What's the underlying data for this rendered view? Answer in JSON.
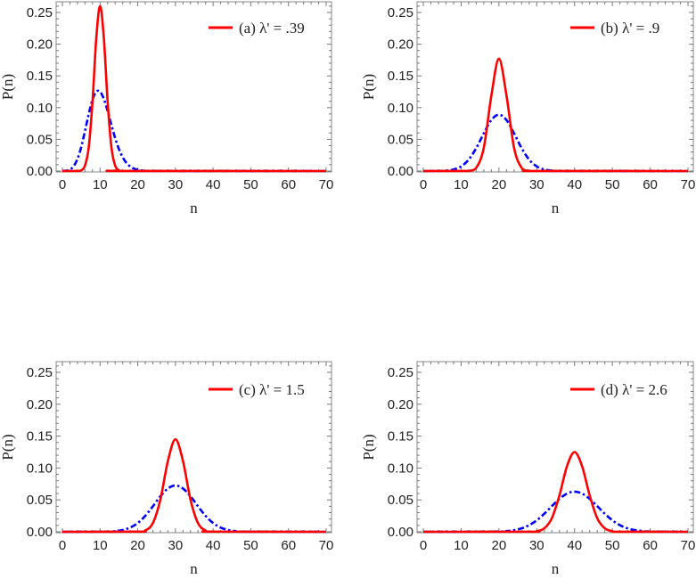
{
  "chart_data": [
    {
      "type": "line",
      "xlabel": "n",
      "ylabel": "P(n)",
      "xlim": [
        0,
        70
      ],
      "ylim": [
        0,
        0.265
      ],
      "xticks": [
        "0",
        "10",
        "20",
        "30",
        "40",
        "50",
        "60",
        "70"
      ],
      "yticks": [
        "0.00",
        "0.05",
        "0.10",
        "0.15",
        "0.20",
        "0.25"
      ],
      "grid": false,
      "legend_placement": "top-right",
      "series": [
        {
          "name": "(a) λ' = .39",
          "color": "#ff0000",
          "style": "solid",
          "x": [
            0,
            4,
            5,
            6,
            7,
            8,
            9,
            10,
            11,
            12,
            13,
            14,
            15,
            16,
            70
          ],
          "y": [
            0,
            0.0001,
            0.0012,
            0.0086,
            0.038,
            0.11,
            0.21,
            0.26,
            0.21,
            0.11,
            0.038,
            0.0086,
            0.0012,
            0.0001,
            0
          ]
        },
        {
          "color": "#0000ff",
          "style": "dash-dot",
          "x": [
            0,
            1,
            2,
            3,
            4,
            5,
            6,
            7,
            8,
            9,
            10,
            11,
            12,
            13,
            14,
            15,
            16,
            17,
            18,
            19,
            20,
            21,
            22,
            23,
            70
          ],
          "y": [
            5e-05,
            0.0005,
            0.0023,
            0.0076,
            0.0189,
            0.0378,
            0.0631,
            0.0901,
            0.1126,
            0.1251,
            0.1251,
            0.1137,
            0.0948,
            0.0729,
            0.0521,
            0.0347,
            0.0217,
            0.0128,
            0.0071,
            0.0037,
            0.0019,
            0.0009,
            0.0004,
            0.0002,
            0
          ]
        }
      ]
    },
    {
      "type": "line",
      "xlabel": "n",
      "ylabel": "P(n)",
      "xlim": [
        0,
        70
      ],
      "ylim": [
        0,
        0.265
      ],
      "xticks": [
        "0",
        "10",
        "20",
        "30",
        "40",
        "50",
        "60",
        "70"
      ],
      "yticks": [
        "0.00",
        "0.05",
        "0.10",
        "0.15",
        "0.20",
        "0.25"
      ],
      "grid": false,
      "legend_placement": "top-right",
      "series": [
        {
          "name": "(b) λ' = .9",
          "color": "#ff0000",
          "style": "solid",
          "x": [
            0,
            10,
            12,
            14,
            16,
            18,
            20,
            22,
            24,
            26,
            28,
            30,
            70
          ],
          "y": [
            0,
            0.0001,
            0.0003,
            0.0051,
            0.0366,
            0.119,
            0.177,
            0.119,
            0.0366,
            0.0051,
            0.0003,
            0.0001,
            0
          ]
        },
        {
          "color": "#0000ff",
          "style": "dash-dot",
          "x": [
            0,
            4,
            6,
            8,
            10,
            12,
            14,
            16,
            18,
            20,
            22,
            24,
            26,
            28,
            30,
            32,
            34,
            36,
            70
          ],
          "y": [
            0,
            0.0001,
            0.0007,
            0.0024,
            0.0073,
            0.0179,
            0.0361,
            0.0595,
            0.0804,
            0.0888,
            0.0804,
            0.0595,
            0.0361,
            0.0179,
            0.0073,
            0.0024,
            0.0007,
            0.0001,
            0
          ]
        }
      ]
    },
    {
      "type": "line",
      "xlabel": "n",
      "ylabel": "P(n)",
      "xlim": [
        0,
        70
      ],
      "ylim": [
        0,
        0.265
      ],
      "xticks": [
        "0",
        "10",
        "20",
        "30",
        "40",
        "50",
        "60",
        "70"
      ],
      "yticks": [
        "0.00",
        "0.05",
        "0.10",
        "0.15",
        "0.20",
        "0.25"
      ],
      "grid": false,
      "legend_placement": "top-right",
      "series": [
        {
          "name": "(c) λ' = 1.5",
          "color": "#ff0000",
          "style": "solid",
          "x": [
            0,
            20,
            22,
            24,
            26,
            28,
            30,
            32,
            34,
            36,
            38,
            40,
            70
          ],
          "y": [
            0,
            0.0002,
            0.0021,
            0.0135,
            0.0504,
            0.111,
            0.145,
            0.111,
            0.0504,
            0.0135,
            0.0021,
            0.0002,
            0
          ]
        },
        {
          "color": "#0000ff",
          "style": "dash-dot",
          "x": [
            0,
            12,
            14,
            16,
            18,
            20,
            22,
            24,
            26,
            28,
            30,
            32,
            34,
            36,
            38,
            40,
            42,
            44,
            46,
            48,
            70
          ],
          "y": [
            0,
            0.0003,
            0.001,
            0.0028,
            0.0066,
            0.0137,
            0.025,
            0.0398,
            0.0556,
            0.0679,
            0.0726,
            0.0679,
            0.0556,
            0.0398,
            0.025,
            0.0137,
            0.0066,
            0.0028,
            0.001,
            0.0003,
            0
          ]
        }
      ]
    },
    {
      "type": "line",
      "xlabel": "n",
      "ylabel": "P(n)",
      "xlim": [
        0,
        70
      ],
      "ylim": [
        0,
        0.265
      ],
      "xticks": [
        "0",
        "10",
        "20",
        "30",
        "40",
        "50",
        "60",
        "70"
      ],
      "yticks": [
        "0.00",
        "0.05",
        "0.10",
        "0.15",
        "0.20",
        "0.25"
      ],
      "grid": false,
      "legend_placement": "top-right",
      "series": [
        {
          "name": "(d) λ' = 2.6",
          "color": "#ff0000",
          "style": "solid",
          "x": [
            0,
            28,
            30,
            32,
            34,
            36,
            38,
            40,
            42,
            44,
            46,
            48,
            50,
            52,
            70
          ],
          "y": [
            0,
            0.0001,
            0.0009,
            0.0054,
            0.0213,
            0.057,
            0.1027,
            0.125,
            0.1027,
            0.057,
            0.0213,
            0.0054,
            0.0009,
            0.0001,
            0
          ]
        },
        {
          "color": "#0000ff",
          "style": "dash-dot",
          "x": [
            0,
            20,
            22,
            24,
            26,
            28,
            30,
            32,
            34,
            36,
            38,
            40,
            42,
            44,
            46,
            48,
            50,
            52,
            54,
            56,
            58,
            60,
            70
          ],
          "y": [
            0,
            0.0004,
            0.0011,
            0.0026,
            0.0054,
            0.0104,
            0.018,
            0.0283,
            0.0402,
            0.0516,
            0.0599,
            0.063,
            0.0599,
            0.0516,
            0.0402,
            0.0283,
            0.018,
            0.0104,
            0.0054,
            0.0026,
            0.0011,
            0.0004,
            0
          ]
        }
      ]
    }
  ]
}
